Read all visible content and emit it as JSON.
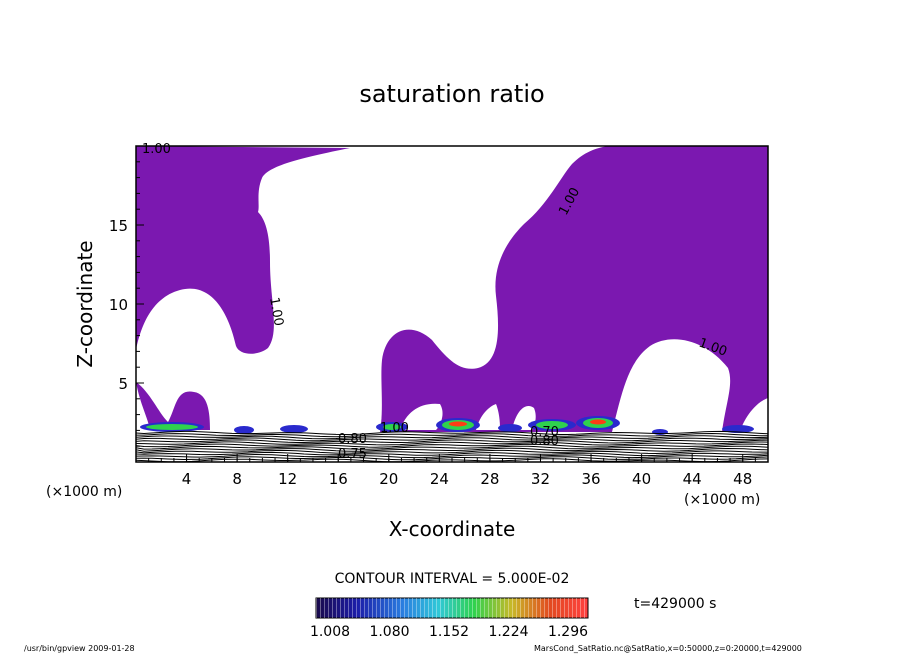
{
  "chart_data": {
    "type": "contour",
    "title": "saturation ratio",
    "xlabel": "X-coordinate",
    "ylabel": "Z-coordinate",
    "x_unit_left": "(×1000 m)",
    "x_unit_right": "(×1000 m)",
    "xlim": [
      0,
      50
    ],
    "ylim": [
      0,
      20
    ],
    "x_ticks": [
      4,
      8,
      12,
      16,
      20,
      24,
      28,
      32,
      36,
      40,
      44,
      48
    ],
    "y_ticks": [
      5,
      10,
      15
    ],
    "contour_interval_text": "CONTOUR INTERVAL = 5.000E-02",
    "contour_labels": [
      "1.00",
      "1.00",
      "1.00",
      "1.00",
      "1.00",
      "0.80",
      "0.80",
      "0.75",
      "0.70"
    ],
    "colorbar": {
      "ticks": [
        "1.008",
        "1.080",
        "1.152",
        "1.224",
        "1.296"
      ],
      "min": 1.008,
      "max": 1.296
    },
    "time_label": "t=429000 s",
    "footer_left": "/usr/bin/gpview  2009-01-28",
    "footer_right": "MarsCond_SatRatio.nc@SatRatio,x=0:50000,z=0:20000,t=429000",
    "colors": {
      "supersaturated_fill": "#7b18b0",
      "low_ramp": "#2a2acd",
      "mid_ramp": "#2fd24e",
      "high_ramp": "#ff3c14"
    }
  }
}
